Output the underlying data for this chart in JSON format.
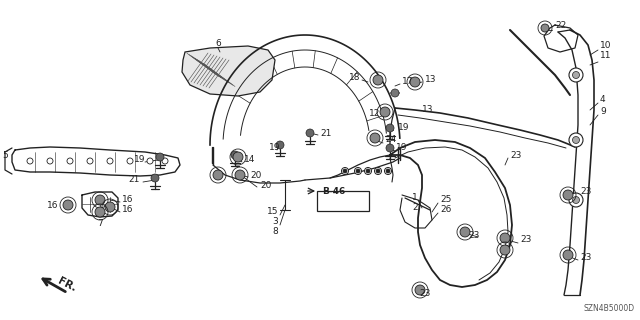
{
  "diagram_code": "SZN4B5000D",
  "bg": "#ffffff",
  "lc": "#222222",
  "figsize": [
    6.4,
    3.2
  ],
  "dpi": 100,
  "xlim": [
    0,
    640
  ],
  "ylim": [
    0,
    320
  ]
}
